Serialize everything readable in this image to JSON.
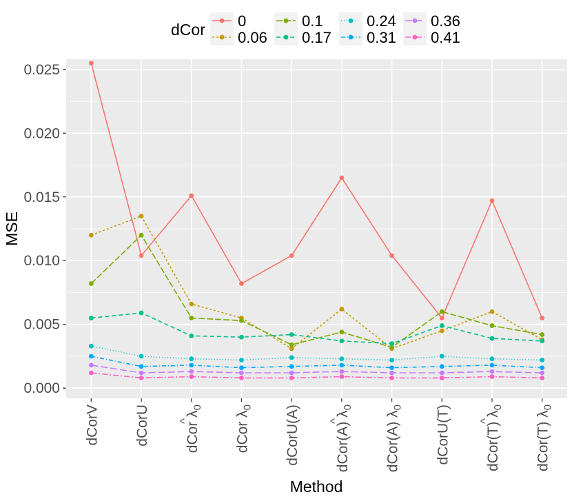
{
  "chart_data": {
    "type": "line",
    "title": "",
    "xlabel": "Method",
    "ylabel": "MSE",
    "ylim": [
      -0.0008,
      0.0258
    ],
    "yticks": [
      0.0,
      0.005,
      0.01,
      0.015,
      0.02,
      0.025
    ],
    "ytick_labels": [
      "0.000",
      "0.005",
      "0.010",
      "0.015",
      "0.020",
      "0.025"
    ],
    "grid": true,
    "legend": {
      "title": "dCor",
      "position": "top"
    },
    "categories": [
      {
        "base": "dCorV",
        "sub": "",
        "hat": false
      },
      {
        "base": "dCorU",
        "sub": "",
        "hat": false
      },
      {
        "base": "dCor λ",
        "sub": "0",
        "hat": true
      },
      {
        "base": "dCor λ",
        "sub": "0",
        "hat": false
      },
      {
        "base": "dCorU(A)",
        "sub": "",
        "hat": false
      },
      {
        "base": "dCor(A) λ",
        "sub": "0",
        "hat": true
      },
      {
        "base": "dCor(A) λ",
        "sub": "0",
        "hat": false
      },
      {
        "base": "dCorU(T)",
        "sub": "",
        "hat": false
      },
      {
        "base": "dCor(T) λ",
        "sub": "0",
        "hat": true
      },
      {
        "base": "dCor(T) λ",
        "sub": "0",
        "hat": false
      }
    ],
    "series": [
      {
        "name": "0",
        "color": "#F8766D",
        "dash": "",
        "values": [
          0.0255,
          0.0104,
          0.0151,
          0.0082,
          0.0104,
          0.0165,
          0.0104,
          0.0055,
          0.0147,
          0.0055
        ]
      },
      {
        "name": "0.06",
        "color": "#C49A00",
        "dash": "3,3",
        "values": [
          0.012,
          0.0135,
          0.0066,
          0.0055,
          0.0031,
          0.0062,
          0.0031,
          0.0045,
          0.006,
          0.0038
        ]
      },
      {
        "name": "0.1",
        "color": "#7CAE00",
        "dash": "9,3",
        "values": [
          0.0082,
          0.012,
          0.0055,
          0.0053,
          0.0034,
          0.0044,
          0.0032,
          0.006,
          0.0049,
          0.0042
        ]
      },
      {
        "name": "0.17",
        "color": "#00C08B",
        "dash": "6,4",
        "values": [
          0.0055,
          0.0059,
          0.0041,
          0.004,
          0.0042,
          0.0037,
          0.0035,
          0.0049,
          0.0039,
          0.0037
        ]
      },
      {
        "name": "0.24",
        "color": "#00BFC4",
        "dash": "1,3",
        "values": [
          0.0033,
          0.0025,
          0.0023,
          0.0022,
          0.0024,
          0.0023,
          0.0022,
          0.0025,
          0.0023,
          0.0022
        ]
      },
      {
        "name": "0.31",
        "color": "#00A9FF",
        "dash": "6,3,1,3",
        "values": [
          0.0025,
          0.0017,
          0.0018,
          0.0016,
          0.0017,
          0.0018,
          0.0016,
          0.0017,
          0.0018,
          0.0016
        ]
      },
      {
        "name": "0.36",
        "color": "#C77CFF",
        "dash": "10,4",
        "values": [
          0.0018,
          0.0012,
          0.0013,
          0.0012,
          0.0012,
          0.0013,
          0.0012,
          0.0012,
          0.0013,
          0.0012
        ]
      },
      {
        "name": "0.41",
        "color": "#FF61C3",
        "dash": "8,3,2,3",
        "values": [
          0.0012,
          0.0008,
          0.0009,
          0.0008,
          0.0008,
          0.0009,
          0.0008,
          0.0008,
          0.0009,
          0.0008
        ]
      }
    ]
  }
}
